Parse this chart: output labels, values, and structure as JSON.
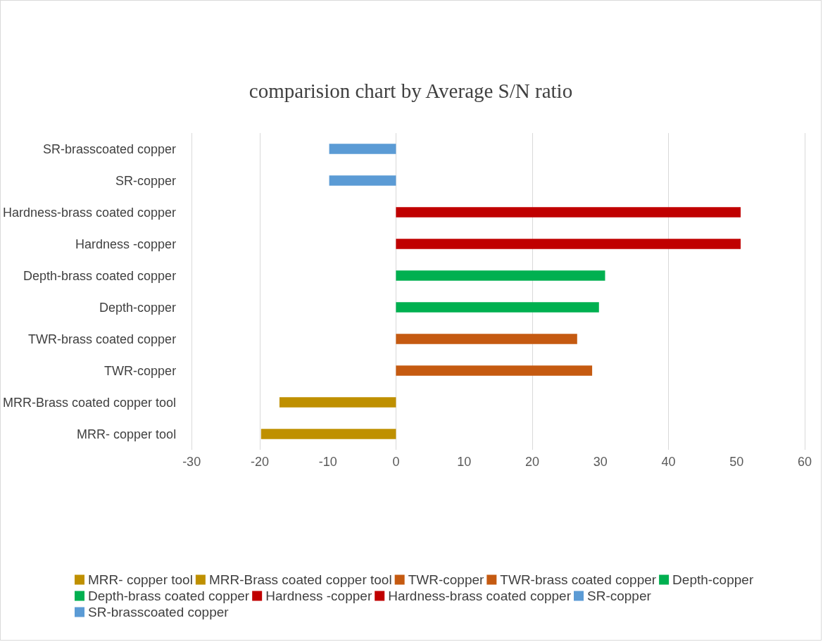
{
  "chart_data": {
    "type": "bar",
    "orientation": "horizontal",
    "title": "comparision chart by Average S/N ratio",
    "categories": [
      "SR-brasscoated copper",
      "SR-copper",
      "Hardness-brass coated copper",
      "Hardness -copper",
      "Depth-brass coated copper",
      "Depth-copper",
      "TWR-brass coated copper",
      "TWR-copper",
      "MRR-Brass coated copper tool",
      "MRR- copper tool"
    ],
    "series": [
      {
        "name": "MRR- copper tool",
        "color": "#bf9000",
        "values": [
          null,
          null,
          null,
          null,
          null,
          null,
          null,
          null,
          null,
          -19.8
        ]
      },
      {
        "name": "MRR-Brass coated copper tool",
        "color": "#bf9000",
        "values": [
          null,
          null,
          null,
          null,
          null,
          null,
          null,
          null,
          -17.1,
          null
        ]
      },
      {
        "name": "TWR-copper",
        "color": "#c55a11",
        "values": [
          null,
          null,
          null,
          null,
          null,
          null,
          null,
          28.8,
          null,
          null
        ]
      },
      {
        "name": "TWR-brass coated copper",
        "color": "#c55a11",
        "values": [
          null,
          null,
          null,
          null,
          null,
          null,
          26.6,
          null,
          null,
          null
        ]
      },
      {
        "name": "Depth-copper",
        "color": "#00b050",
        "values": [
          null,
          null,
          null,
          null,
          null,
          29.8,
          null,
          null,
          null,
          null
        ]
      },
      {
        "name": "Depth-brass coated copper",
        "color": "#00b050",
        "values": [
          null,
          null,
          null,
          null,
          30.7,
          null,
          null,
          null,
          null,
          null
        ]
      },
      {
        "name": "Hardness -copper",
        "color": "#c00000",
        "values": [
          null,
          null,
          null,
          50.6,
          null,
          null,
          null,
          null,
          null,
          null
        ]
      },
      {
        "name": "Hardness-brass coated copper",
        "color": "#c00000",
        "values": [
          null,
          null,
          50.6,
          null,
          null,
          null,
          null,
          null,
          null,
          null
        ]
      },
      {
        "name": "SR-copper",
        "color": "#5b9bd5",
        "values": [
          null,
          -9.8,
          null,
          null,
          null,
          null,
          null,
          null,
          null,
          null
        ]
      },
      {
        "name": "SR-brasscoated copper",
        "color": "#5b9bd5",
        "values": [
          -9.8,
          null,
          null,
          null,
          null,
          null,
          null,
          null,
          null,
          null
        ]
      }
    ],
    "xlim": [
      -30,
      60
    ],
    "xticks": [
      -30,
      -20,
      -10,
      0,
      10,
      20,
      30,
      40,
      50,
      60
    ],
    "grid": "x",
    "legend": "bottom"
  }
}
